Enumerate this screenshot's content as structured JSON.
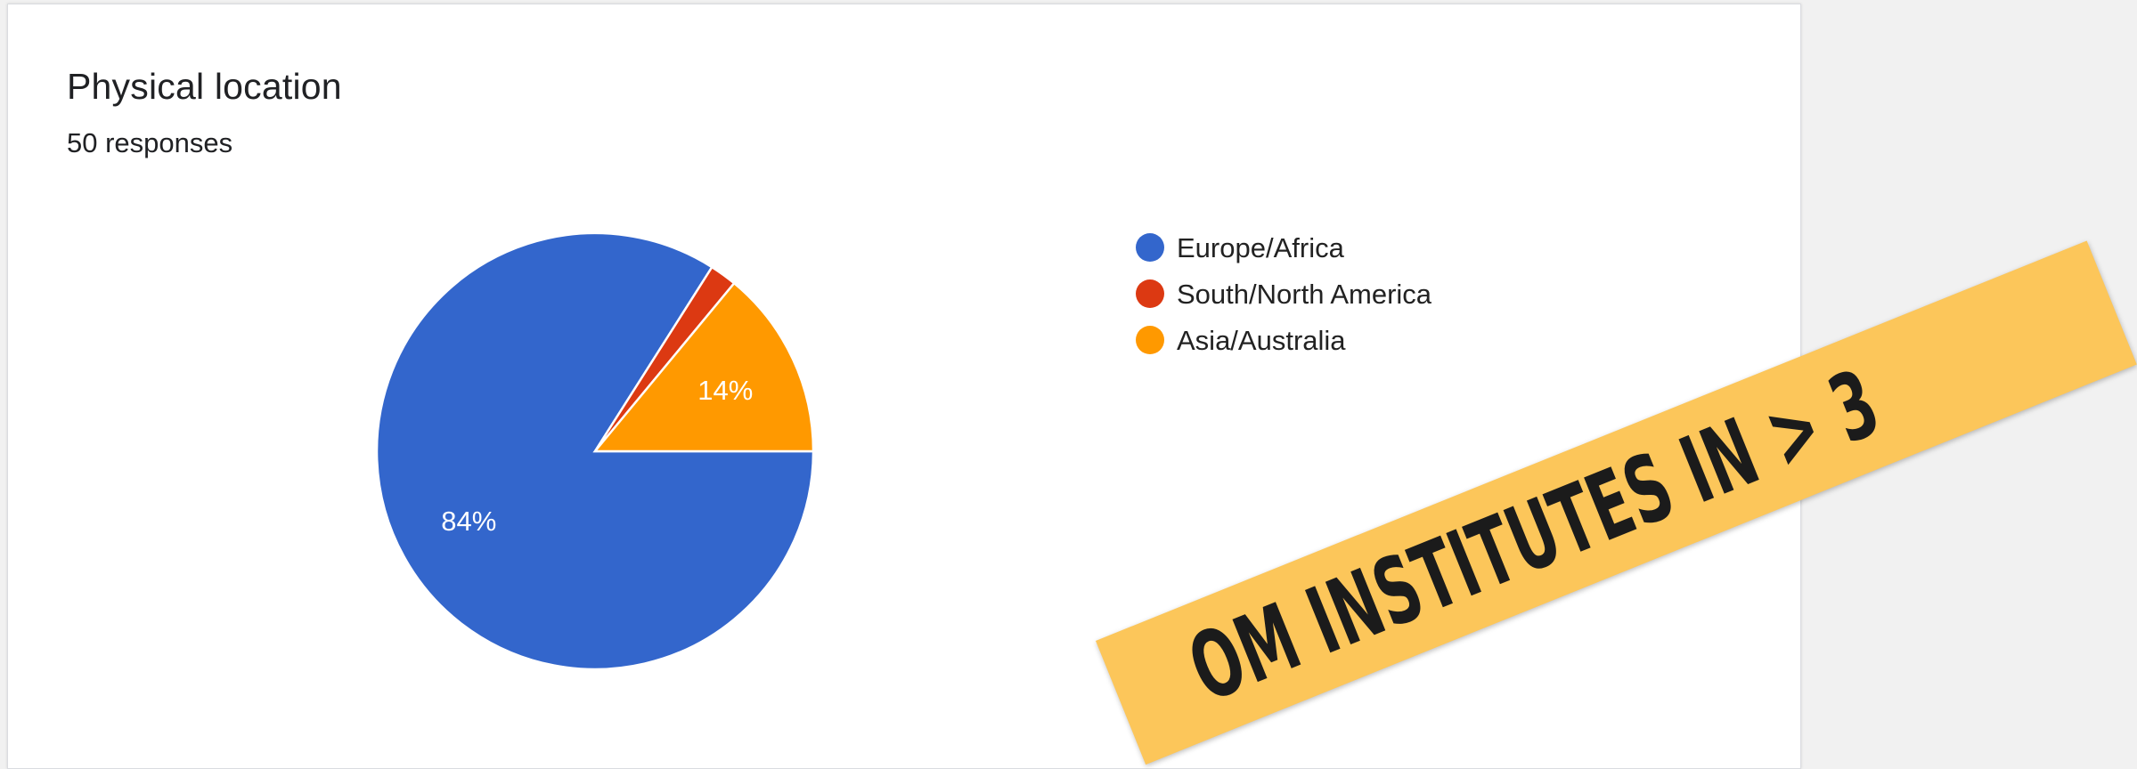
{
  "title": "Physical location",
  "responses": "50 responses",
  "chart_data": {
    "type": "pie",
    "title": "Physical location",
    "subtitle": "50 responses",
    "categories": [
      "Europe/Africa",
      "South/North America",
      "Asia/Australia"
    ],
    "values": [
      84,
      2,
      14
    ],
    "slice_labels": [
      "84%",
      "",
      "14%"
    ],
    "colors": [
      "#3366cc",
      "#dc3912",
      "#ff9900"
    ],
    "legend": [
      "Europe/Africa",
      "South/North America",
      "Asia/Australia"
    ],
    "legend_position": "right"
  },
  "banner": {
    "text": "OM INSTITUTES IN > 3",
    "color": "#fcc65a"
  }
}
